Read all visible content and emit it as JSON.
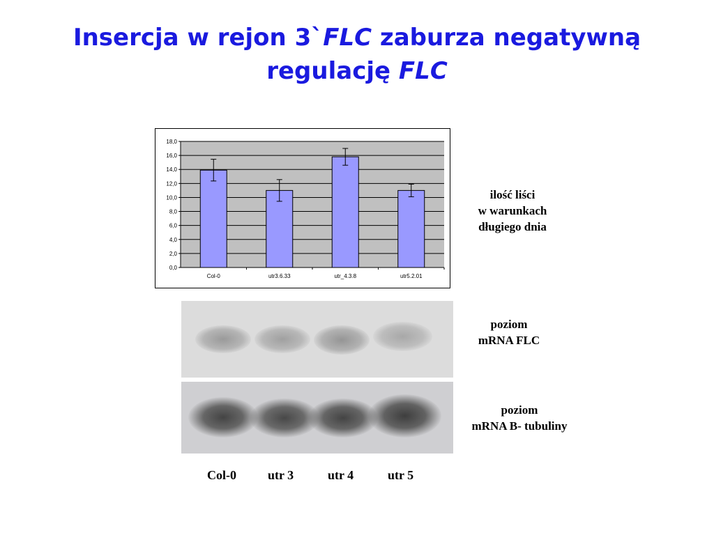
{
  "title": {
    "part1": "Insercja w rejon 3`",
    "flc1": "FLC",
    "part2": " zaburza negatywną",
    "part3": "regulację ",
    "flc2": "FLC"
  },
  "chart_data": {
    "type": "bar",
    "categories": [
      "Col-0",
      "utr3.6.33",
      "utr_4.3.8",
      "utr5.2.01"
    ],
    "values": [
      13.9,
      11.0,
      15.8,
      11.0
    ],
    "errors": [
      1.55,
      1.55,
      1.2,
      0.9
    ],
    "ylim": [
      0,
      18
    ],
    "yticks": [
      "0,0",
      "2,0",
      "4,0",
      "6,0",
      "8,0",
      "10,0",
      "12,0",
      "14,0",
      "16,0",
      "18,0"
    ],
    "grid": true,
    "bar_color": "#9999ff",
    "plot_bg": "#c0c0c0"
  },
  "labels": {
    "chart": [
      "ilość liści",
      "w warunkach",
      "długiego dnia"
    ],
    "flc": [
      "poziom",
      "mRNA FLC"
    ],
    "tubulin": [
      "poziom",
      "mRNA B- tubuliny"
    ]
  },
  "lanes": [
    "Col-0",
    "utr 3",
    "utr 4",
    "utr 5"
  ]
}
